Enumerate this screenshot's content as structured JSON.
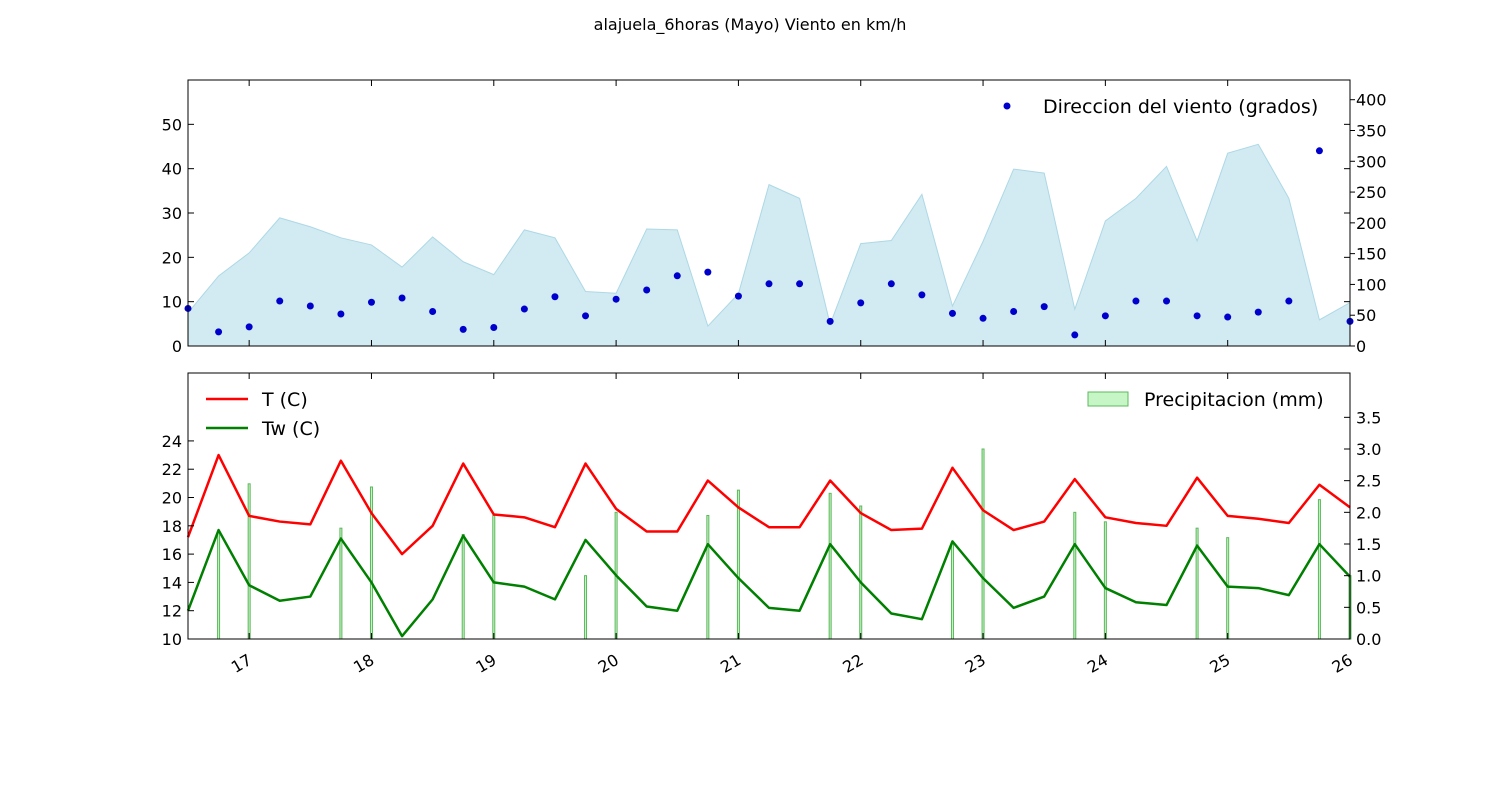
{
  "figure": {
    "title": "alajuela_6horas (Mayo) Viento en km/h"
  },
  "colors": {
    "wind_fill": "#add8e6",
    "direction_points": "#0000cc",
    "temperature": "#ff0000",
    "wet_bulb": "#008000",
    "precip_fill": "#c6f5c6",
    "precip_edge": "#5cb85c"
  },
  "chart_data": [
    {
      "type": "area",
      "panel": "top",
      "x_axis": "days (May)",
      "xlim": [
        16.5,
        26
      ],
      "ylim": [
        0,
        60
      ],
      "y_ticks": [
        0,
        10,
        20,
        30,
        40,
        50
      ],
      "secondary_ylim": [
        0,
        432
      ],
      "secondary_y_ticks": [
        0,
        50,
        100,
        150,
        200,
        250,
        300,
        350,
        400
      ],
      "legend_position": "top-right",
      "series": [
        {
          "name": "",
          "kind": "area",
          "axis": "left",
          "x": [
            16.5,
            16.75,
            17.0,
            17.25,
            17.5,
            17.75,
            18.0,
            18.25,
            18.5,
            18.75,
            19.0,
            19.25,
            19.5,
            19.75,
            20.0,
            20.25,
            20.5,
            20.75,
            21.0,
            21.25,
            21.5,
            21.75,
            22.0,
            22.25,
            22.5,
            22.75,
            23.0,
            23.25,
            23.5,
            23.75,
            24.0,
            24.25,
            24.5,
            24.75,
            25.0,
            25.25,
            25.5,
            25.75,
            26.0
          ],
          "values": [
            7.5,
            15.8,
            21.0,
            28.9,
            26.9,
            24.4,
            22.8,
            17.8,
            24.6,
            19.0,
            16.1,
            26.2,
            24.4,
            12.3,
            11.9,
            26.4,
            26.2,
            4.5,
            11.8,
            36.4,
            33.3,
            4.9,
            23.1,
            23.8,
            34.2,
            9.0,
            23.6,
            39.9,
            39.0,
            8.3,
            28.2,
            33.3,
            40.5,
            23.7,
            43.5,
            45.5,
            33.3,
            5.9,
            9.8
          ]
        },
        {
          "name": "Direccion del viento (grados)",
          "kind": "scatter",
          "axis": "right",
          "x": [
            16.5,
            16.75,
            17.0,
            17.25,
            17.5,
            17.75,
            18.0,
            18.25,
            18.5,
            18.75,
            19.0,
            19.25,
            19.5,
            19.75,
            20.0,
            20.25,
            20.5,
            20.75,
            21.0,
            21.25,
            21.5,
            21.75,
            22.0,
            22.25,
            22.5,
            22.75,
            23.0,
            23.25,
            23.5,
            23.75,
            24.0,
            24.25,
            24.5,
            24.75,
            25.0,
            25.25,
            25.5,
            25.75,
            26.0
          ],
          "values": [
            61,
            23,
            31,
            73,
            65,
            52,
            71,
            78,
            56,
            27,
            30,
            60,
            80,
            49,
            76,
            91,
            114,
            120,
            81,
            101,
            101,
            40,
            70,
            101,
            83,
            53,
            45,
            56,
            64,
            18,
            49,
            73,
            73,
            49,
            47,
            55,
            73,
            317,
            40
          ]
        }
      ]
    },
    {
      "type": "line",
      "panel": "bottom",
      "x_axis": "days (May)",
      "xlim": [
        16.5,
        26
      ],
      "x_tick_values": [
        17,
        18,
        19,
        20,
        21,
        22,
        23,
        24,
        25,
        26
      ],
      "x_tick_labels": [
        "17",
        "18",
        "19",
        "20",
        "21",
        "22",
        "23",
        "24",
        "25",
        "26"
      ],
      "ylim": [
        10,
        28.8
      ],
      "y_ticks": [
        10,
        12,
        14,
        16,
        18,
        20,
        22,
        24
      ],
      "secondary_ylim": [
        0,
        4.2
      ],
      "secondary_y_ticks": [
        0.0,
        0.5,
        1.0,
        1.5,
        2.0,
        2.5,
        3.0,
        3.5
      ],
      "secondary_y_tick_labels": [
        "0.0",
        "0.5",
        "1.0",
        "1.5",
        "2.0",
        "2.5",
        "3.0",
        "3.5"
      ],
      "legend_left_position": "top-left",
      "legend_right_position": "top-right",
      "series": [
        {
          "name": "T (C)",
          "kind": "line",
          "axis": "left",
          "x": [
            16.5,
            16.75,
            17.0,
            17.25,
            17.5,
            17.75,
            18.0,
            18.25,
            18.5,
            18.75,
            19.0,
            19.25,
            19.5,
            19.75,
            20.0,
            20.25,
            20.5,
            20.75,
            21.0,
            21.25,
            21.5,
            21.75,
            22.0,
            22.25,
            22.5,
            22.75,
            23.0,
            23.25,
            23.5,
            23.75,
            24.0,
            24.25,
            24.5,
            24.75,
            25.0,
            25.25,
            25.5,
            25.75,
            26.0
          ],
          "values": [
            17.2,
            23.0,
            18.7,
            18.3,
            18.1,
            22.6,
            18.9,
            16.0,
            18.0,
            22.4,
            18.8,
            18.6,
            17.9,
            22.4,
            19.2,
            17.6,
            17.6,
            21.2,
            19.3,
            17.9,
            17.9,
            21.2,
            18.9,
            17.7,
            17.8,
            22.1,
            19.1,
            17.7,
            18.3,
            21.3,
            18.6,
            18.2,
            18.0,
            21.4,
            18.7,
            18.5,
            18.2,
            20.9,
            19.3
          ]
        },
        {
          "name": "Tw (C)",
          "kind": "line",
          "axis": "left",
          "x": [
            16.5,
            16.75,
            17.0,
            17.25,
            17.5,
            17.75,
            18.0,
            18.25,
            18.5,
            18.75,
            19.0,
            19.25,
            19.5,
            19.75,
            20.0,
            20.25,
            20.5,
            20.75,
            21.0,
            21.25,
            21.5,
            21.75,
            22.0,
            22.25,
            22.5,
            22.75,
            23.0,
            23.25,
            23.5,
            23.75,
            24.0,
            24.25,
            24.5,
            24.75,
            25.0,
            25.25,
            25.5,
            25.75,
            26.0
          ],
          "values": [
            12.0,
            17.7,
            13.8,
            12.7,
            13.0,
            17.1,
            14.0,
            10.2,
            12.8,
            17.3,
            14.0,
            13.7,
            12.8,
            17.0,
            14.5,
            12.3,
            12.0,
            16.7,
            14.3,
            12.2,
            12.0,
            16.7,
            14.0,
            11.8,
            11.4,
            16.9,
            14.3,
            12.2,
            13.0,
            16.7,
            13.6,
            12.6,
            12.4,
            16.6,
            13.7,
            13.6,
            13.1,
            16.7,
            14.4
          ]
        },
        {
          "name": "Precipitacion (mm)",
          "kind": "bar",
          "axis": "right",
          "x": [
            16.75,
            17.0,
            17.75,
            18.0,
            18.75,
            19.0,
            19.75,
            20.0,
            20.75,
            21.0,
            21.75,
            22.0,
            22.75,
            23.0,
            23.75,
            24.0,
            24.75,
            25.0,
            25.75,
            26.0
          ],
          "values": [
            1.7,
            2.45,
            1.75,
            2.4,
            1.65,
            1.95,
            1.0,
            2.0,
            1.95,
            2.35,
            2.3,
            2.1,
            1.5,
            3.0,
            2.0,
            1.85,
            1.75,
            1.6,
            2.2,
            1.0
          ]
        }
      ]
    }
  ]
}
